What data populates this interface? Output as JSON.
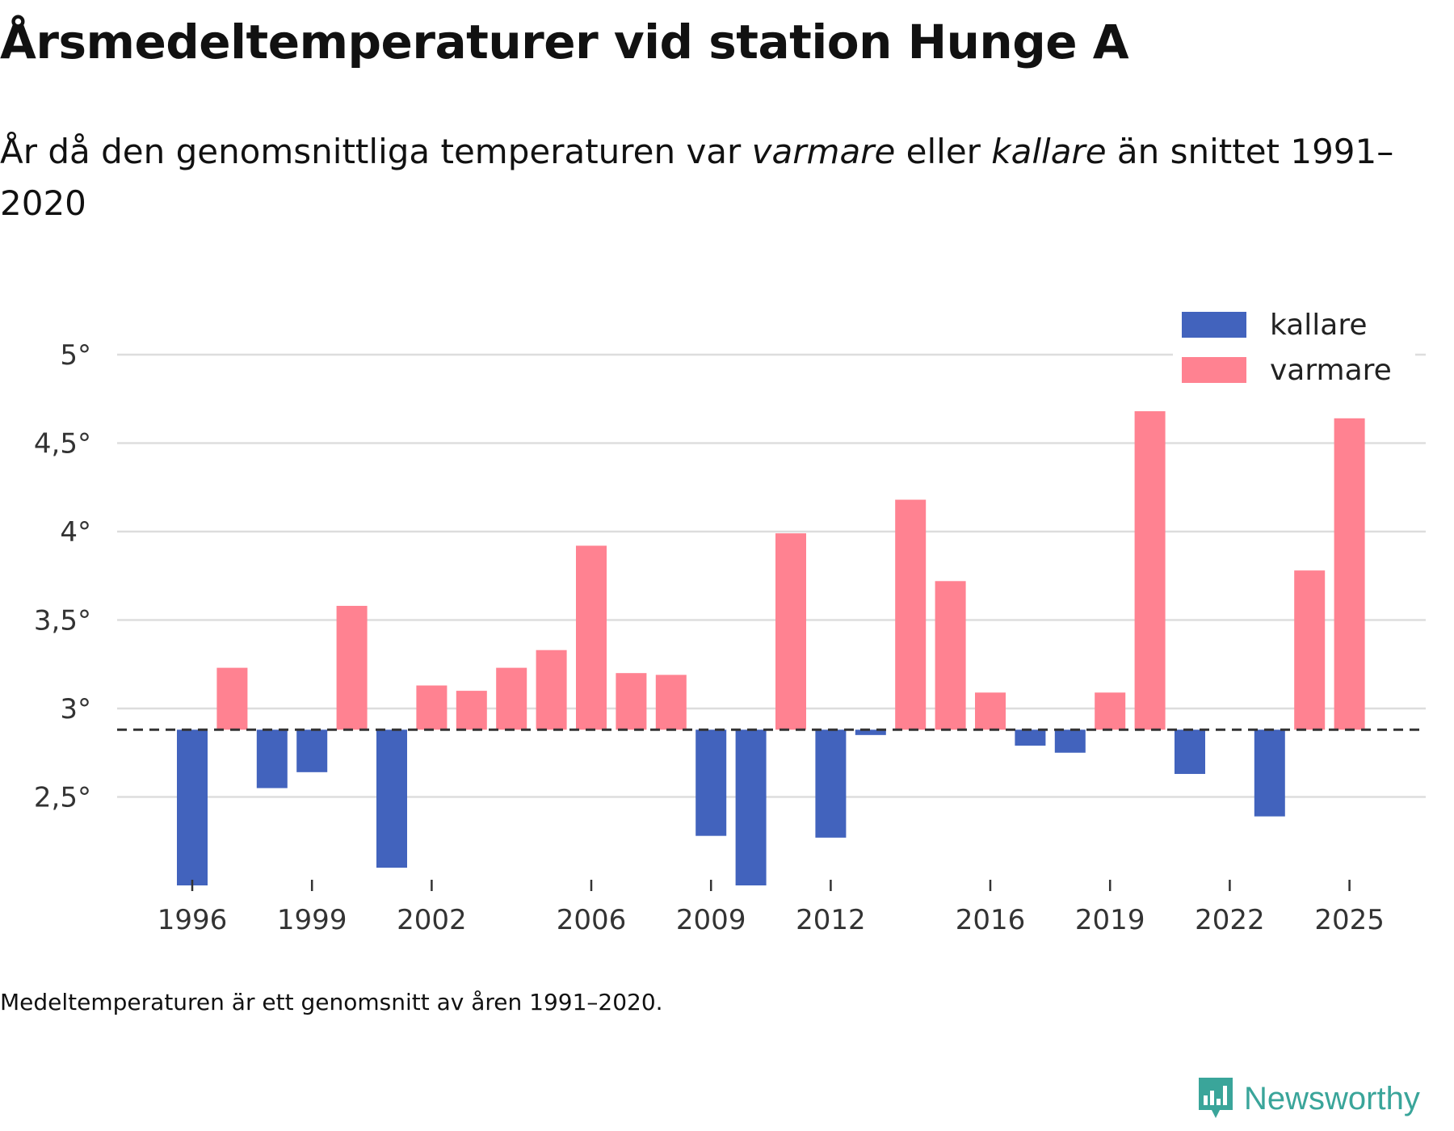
{
  "title": "Årsmedeltemperaturer vid station Hunge A",
  "subtitle": {
    "part1": "År då den genomsnittliga temperaturen var ",
    "warm_word": "varmare",
    "part2": " eller ",
    "cold_word": "kallare",
    "part3": " än snittet 1991–2020"
  },
  "note": "Medeltemperaturen är ett genomsnitt av åren 1991–2020.",
  "brand": {
    "name": "Newsworthy",
    "icon": "newsworthy-logo-icon"
  },
  "colors": {
    "kallare": "#4263bd",
    "varmare": "#ff8291",
    "grid": "#dddddd",
    "baseline": "#333333",
    "brand": "#3aa59a"
  },
  "chart_data": {
    "type": "bar",
    "title": "Årsmedeltemperaturer vid station Hunge A",
    "xlabel": "",
    "ylabel": "",
    "baseline": 2.88,
    "ylim": [
      2.0,
      5.05
    ],
    "y_ticks": [
      2.5,
      3,
      3.5,
      4,
      4.5,
      5
    ],
    "y_tick_labels": [
      "2,5°",
      "3°",
      "3,5°",
      "4°",
      "4,5°",
      "5°"
    ],
    "x_ticks": [
      1996,
      1999,
      2002,
      2006,
      2009,
      2012,
      2016,
      2019,
      2022,
      2025
    ],
    "x_tick_labels": [
      "1996",
      "1999",
      "2002",
      "2006",
      "2009",
      "2012",
      "2016",
      "2019",
      "2022",
      "2025"
    ],
    "legend": [
      {
        "key": "kallare",
        "label": "kallare"
      },
      {
        "key": "varmare",
        "label": "varmare"
      }
    ],
    "legend_position": "top-right",
    "years": [
      1996,
      1997,
      1998,
      1999,
      2000,
      2001,
      2002,
      2003,
      2004,
      2005,
      2006,
      2007,
      2008,
      2009,
      2010,
      2011,
      2012,
      2013,
      2014,
      2015,
      2016,
      2017,
      2018,
      2019,
      2020,
      2021,
      2022,
      2023,
      2024,
      2025
    ],
    "values": [
      2.0,
      3.23,
      2.55,
      2.64,
      3.58,
      2.1,
      3.13,
      3.1,
      3.23,
      3.33,
      3.92,
      3.2,
      3.19,
      2.28,
      2.0,
      3.99,
      2.27,
      2.85,
      4.18,
      3.72,
      3.09,
      2.79,
      2.75,
      3.09,
      4.68,
      2.63,
      null,
      2.39,
      3.78,
      4.64
    ]
  }
}
